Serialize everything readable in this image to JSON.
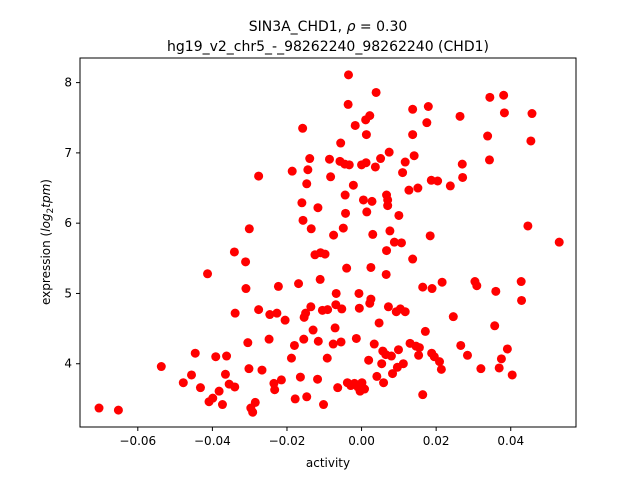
{
  "chart_data": {
    "type": "scatter",
    "title_prefix": "SIN3A_CHD1, ",
    "title_symbol": "ρ",
    "title_suffix": " = 0.30",
    "subtitle": "hg19_v2_chr5_-_98262240_98262240 (CHD1)",
    "xlabel": "activity",
    "ylabel_prefix": "expression (",
    "ylabel_math_1": "log",
    "ylabel_sub": "2",
    "ylabel_math_2": "tpm",
    "ylabel_suffix": ")",
    "xlim": [
      -0.0755,
      0.0575
    ],
    "ylim": [
      3.1,
      8.35
    ],
    "xticks": [
      -0.06,
      -0.04,
      -0.02,
      0.0,
      0.02,
      0.04
    ],
    "xtick_labels": [
      "−0.06",
      "−0.04",
      "−0.02",
      "0.00",
      "0.02",
      "0.04"
    ],
    "yticks": [
      4,
      5,
      6,
      7,
      8
    ],
    "ytick_labels": [
      "4",
      "5",
      "6",
      "7",
      "8"
    ],
    "marker_color": "#ff0000",
    "series": [
      {
        "name": "samples",
        "points": [
          [
            -0.0704,
            3.37
          ],
          [
            -0.0652,
            3.34
          ],
          [
            -0.0537,
            3.96
          ],
          [
            -0.0478,
            3.73
          ],
          [
            -0.0456,
            3.84
          ],
          [
            -0.0446,
            4.15
          ],
          [
            -0.0432,
            3.66
          ],
          [
            -0.0409,
            3.46
          ],
          [
            -0.0413,
            5.28
          ],
          [
            -0.0399,
            3.51
          ],
          [
            -0.0391,
            4.1
          ],
          [
            -0.0382,
            3.61
          ],
          [
            -0.0373,
            3.42
          ],
          [
            -0.0365,
            3.85
          ],
          [
            -0.0362,
            4.11
          ],
          [
            -0.0355,
            3.71
          ],
          [
            -0.034,
            3.67
          ],
          [
            -0.0339,
            4.72
          ],
          [
            -0.0341,
            5.59
          ],
          [
            -0.0311,
            5.45
          ],
          [
            -0.031,
            5.07
          ],
          [
            -0.0305,
            4.3
          ],
          [
            -0.0302,
            3.93
          ],
          [
            -0.0301,
            5.92
          ],
          [
            -0.0297,
            3.37
          ],
          [
            -0.0292,
            3.31
          ],
          [
            -0.0285,
            3.45
          ],
          [
            -0.0276,
            6.67
          ],
          [
            -0.0276,
            4.77
          ],
          [
            -0.0267,
            3.91
          ],
          [
            -0.0248,
            4.35
          ],
          [
            -0.0246,
            4.7
          ],
          [
            -0.0235,
            3.72
          ],
          [
            -0.0233,
            3.63
          ],
          [
            -0.0227,
            4.72
          ],
          [
            -0.0223,
            5.1
          ],
          [
            -0.0215,
            3.77
          ],
          [
            -0.0205,
            4.62
          ],
          [
            -0.0188,
            4.08
          ],
          [
            -0.0186,
            6.74
          ],
          [
            -0.018,
            4.26
          ],
          [
            -0.0178,
            3.5
          ],
          [
            -0.0169,
            5.14
          ],
          [
            -0.0164,
            3.81
          ],
          [
            -0.0158,
            7.35
          ],
          [
            -0.016,
            6.29
          ],
          [
            -0.0157,
            6.04
          ],
          [
            -0.0155,
            4.35
          ],
          [
            -0.0154,
            4.66
          ],
          [
            -0.015,
            4.72
          ],
          [
            -0.0147,
            6.56
          ],
          [
            -0.0144,
            6.76
          ],
          [
            -0.0147,
            3.53
          ],
          [
            -0.0139,
            6.92
          ],
          [
            -0.0135,
            5.92
          ],
          [
            -0.013,
            4.48
          ],
          [
            -0.0136,
            4.81
          ],
          [
            -0.0125,
            5.55
          ],
          [
            -0.0117,
            6.22
          ],
          [
            -0.0116,
            4.32
          ],
          [
            -0.0118,
            3.78
          ],
          [
            -0.0111,
            5.2
          ],
          [
            -0.011,
            5.58
          ],
          [
            -0.0105,
            4.76
          ],
          [
            -0.0102,
            3.42
          ],
          [
            -0.0098,
            5.56
          ],
          [
            -0.0092,
            4.08
          ],
          [
            -0.0091,
            4.77
          ],
          [
            -0.0086,
            6.91
          ],
          [
            -0.0083,
            6.66
          ],
          [
            -0.0076,
            4.28
          ],
          [
            -0.0075,
            5.83
          ],
          [
            -0.0071,
            4.51
          ],
          [
            -0.0069,
            4.84
          ],
          [
            -0.0068,
            5.0
          ],
          [
            -0.0064,
            3.66
          ],
          [
            -0.0058,
            6.88
          ],
          [
            -0.0056,
            7.14
          ],
          [
            -0.0053,
            4.78
          ],
          [
            -0.0055,
            4.31
          ],
          [
            -0.0049,
            5.93
          ],
          [
            -0.0045,
            6.84
          ],
          [
            -0.0044,
            6.4
          ],
          [
            -0.0043,
            6.14
          ],
          [
            -0.004,
            5.36
          ],
          [
            -0.0038,
            3.73
          ],
          [
            -0.0036,
            7.69
          ],
          [
            -0.0035,
            8.11
          ],
          [
            -0.0033,
            6.83
          ],
          [
            -0.0029,
            3.69
          ],
          [
            -0.0022,
            6.54
          ],
          [
            -0.0019,
            3.72
          ],
          [
            -0.0017,
            7.39
          ],
          [
            -0.0014,
            4.36
          ],
          [
            -0.001,
            3.67
          ],
          [
            -0.0007,
            5.0
          ],
          [
            -0.0006,
            4.79
          ],
          [
            -0.0004,
            3.61
          ],
          [
            0.0,
            6.83
          ],
          [
            0.0001,
            3.73
          ],
          [
            0.0005,
            6.33
          ],
          [
            0.0008,
            3.64
          ],
          [
            0.0011,
            7.47
          ],
          [
            0.0012,
            6.86
          ],
          [
            0.0013,
            7.26
          ],
          [
            0.0014,
            6.16
          ],
          [
            0.0019,
            4.05
          ],
          [
            0.0022,
            4.86
          ],
          [
            0.0022,
            7.53
          ],
          [
            0.0025,
            5.37
          ],
          [
            0.0025,
            4.92
          ],
          [
            0.0028,
            6.31
          ],
          [
            0.003,
            5.84
          ],
          [
            0.0034,
            4.28
          ],
          [
            0.0037,
            6.8
          ],
          [
            0.0039,
            7.86
          ],
          [
            0.0041,
            3.82
          ],
          [
            0.0047,
            4.58
          ],
          [
            0.0051,
            6.92
          ],
          [
            0.0054,
            4.0
          ],
          [
            0.0057,
            4.18
          ],
          [
            0.0059,
            3.73
          ],
          [
            0.0065,
            4.13
          ],
          [
            0.0066,
            5.27
          ],
          [
            0.0067,
            5.61
          ],
          [
            0.0067,
            6.4
          ],
          [
            0.007,
            6.25
          ],
          [
            0.007,
            6.33
          ],
          [
            0.0072,
            4.81
          ],
          [
            0.0074,
            7.01
          ],
          [
            0.0076,
            5.89
          ],
          [
            0.008,
            4.11
          ],
          [
            0.0083,
            3.86
          ],
          [
            0.0088,
            5.73
          ],
          [
            0.0093,
            4.74
          ],
          [
            0.0096,
            3.95
          ],
          [
            0.0099,
            4.2
          ],
          [
            0.01,
            6.11
          ],
          [
            0.0104,
            4.78
          ],
          [
            0.0107,
            5.72
          ],
          [
            0.011,
            6.72
          ],
          [
            0.0112,
            4.0
          ],
          [
            0.0117,
            6.87
          ],
          [
            0.0117,
            4.74
          ],
          [
            0.0127,
            6.47
          ],
          [
            0.013,
            4.29
          ],
          [
            0.0137,
            7.62
          ],
          [
            0.0137,
            5.49
          ],
          [
            0.0137,
            7.26
          ],
          [
            0.0141,
            6.96
          ],
          [
            0.0146,
            4.25
          ],
          [
            0.0151,
            6.5
          ],
          [
            0.0153,
            4.12
          ],
          [
            0.0155,
            4.23
          ],
          [
            0.0164,
            3.56
          ],
          [
            0.0164,
            5.09
          ],
          [
            0.0171,
            4.46
          ],
          [
            0.0175,
            7.43
          ],
          [
            0.0179,
            7.66
          ],
          [
            0.0184,
            5.82
          ],
          [
            0.0187,
            6.61
          ],
          [
            0.0188,
            4.15
          ],
          [
            0.0189,
            5.07
          ],
          [
            0.0195,
            4.1
          ],
          [
            0.0204,
            6.6
          ],
          [
            0.0209,
            4.03
          ],
          [
            0.0214,
            3.92
          ],
          [
            0.0216,
            5.16
          ],
          [
            0.0238,
            6.53
          ],
          [
            0.0246,
            4.67
          ],
          [
            0.0264,
            7.52
          ],
          [
            0.0266,
            4.26
          ],
          [
            0.027,
            6.84
          ],
          [
            0.0271,
            6.65
          ],
          [
            0.0284,
            4.12
          ],
          [
            0.0304,
            5.17
          ],
          [
            0.0309,
            5.11
          ],
          [
            0.032,
            3.93
          ],
          [
            0.0338,
            7.24
          ],
          [
            0.0343,
            6.9
          ],
          [
            0.0344,
            7.79
          ],
          [
            0.0357,
            4.54
          ],
          [
            0.036,
            5.03
          ],
          [
            0.0369,
            3.94
          ],
          [
            0.0375,
            4.07
          ],
          [
            0.0381,
            7.82
          ],
          [
            0.0383,
            7.57
          ],
          [
            0.0391,
            4.21
          ],
          [
            0.0404,
            3.84
          ],
          [
            0.0428,
            5.17
          ],
          [
            0.0429,
            4.9
          ],
          [
            0.0446,
            5.96
          ],
          [
            0.0454,
            7.17
          ],
          [
            0.0457,
            7.56
          ],
          [
            0.053,
            5.73
          ]
        ]
      }
    ]
  }
}
